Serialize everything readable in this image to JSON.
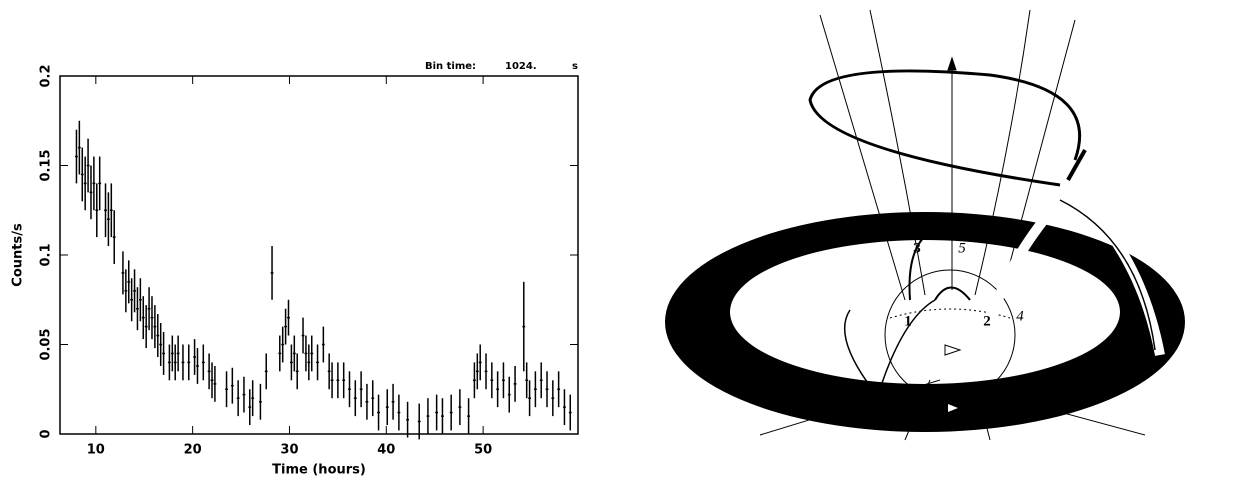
{
  "chart_data": {
    "type": "errorbar",
    "xlabel": "Time (hours)",
    "ylabel": "Counts/s",
    "annotations": [
      "Bin time:",
      "1024.",
      "s"
    ],
    "xlim": [
      6.3,
      59.8
    ],
    "ylim": [
      0,
      0.2
    ],
    "xticks": [
      10,
      20,
      30,
      40,
      50
    ],
    "yticks": [
      0,
      0.05,
      0.1,
      0.15,
      0.2
    ],
    "color": "#000000",
    "x": [
      8.0,
      8.3,
      8.6,
      8.9,
      9.2,
      9.5,
      9.8,
      10.1,
      10.4,
      11.0,
      11.3,
      11.6,
      11.9,
      12.8,
      13.1,
      13.4,
      13.7,
      14.0,
      14.3,
      14.6,
      14.9,
      15.2,
      15.5,
      15.8,
      16.1,
      16.4,
      16.7,
      17.0,
      17.6,
      17.9,
      18.2,
      18.5,
      19.0,
      19.6,
      20.2,
      20.5,
      21.1,
      21.7,
      22.0,
      22.3,
      23.5,
      24.1,
      24.7,
      25.3,
      25.9,
      26.2,
      27.0,
      27.6,
      28.2,
      29.0,
      29.3,
      29.6,
      29.9,
      30.2,
      30.5,
      30.8,
      31.4,
      31.7,
      32.0,
      32.3,
      32.9,
      33.5,
      34.1,
      34.4,
      35.0,
      35.6,
      36.2,
      36.8,
      37.4,
      38.0,
      38.6,
      39.2,
      40.1,
      40.7,
      41.3,
      42.2,
      43.4,
      44.3,
      45.2,
      45.8,
      46.7,
      47.6,
      48.5,
      49.1,
      49.4,
      49.7,
      50.3,
      50.9,
      51.5,
      52.1,
      52.7,
      53.3,
      54.2,
      54.5,
      54.8,
      55.4,
      56.0,
      56.6,
      57.2,
      57.8,
      58.4,
      59.0
    ],
    "values": [
      0.155,
      0.16,
      0.145,
      0.14,
      0.15,
      0.135,
      0.14,
      0.125,
      0.14,
      0.125,
      0.12,
      0.125,
      0.11,
      0.09,
      0.08,
      0.085,
      0.075,
      0.08,
      0.07,
      0.075,
      0.065,
      0.06,
      0.07,
      0.065,
      0.06,
      0.055,
      0.05,
      0.045,
      0.04,
      0.045,
      0.04,
      0.045,
      0.04,
      0.04,
      0.043,
      0.038,
      0.04,
      0.035,
      0.03,
      0.028,
      0.025,
      0.027,
      0.02,
      0.022,
      0.015,
      0.02,
      0.018,
      0.035,
      0.09,
      0.045,
      0.05,
      0.06,
      0.065,
      0.04,
      0.045,
      0.035,
      0.055,
      0.045,
      0.04,
      0.045,
      0.04,
      0.05,
      0.035,
      0.03,
      0.03,
      0.03,
      0.025,
      0.02,
      0.025,
      0.018,
      0.02,
      0.012,
      0.015,
      0.018,
      0.012,
      0.008,
      0.007,
      0.01,
      0.012,
      0.01,
      0.012,
      0.015,
      0.01,
      0.03,
      0.035,
      0.04,
      0.035,
      0.03,
      0.025,
      0.03,
      0.022,
      0.028,
      0.06,
      0.03,
      0.02,
      0.025,
      0.03,
      0.025,
      0.02,
      0.025,
      0.015,
      0.012
    ],
    "errors": [
      0.015,
      0.015,
      0.015,
      0.015,
      0.015,
      0.015,
      0.015,
      0.015,
      0.015,
      0.015,
      0.015,
      0.015,
      0.015,
      0.012,
      0.012,
      0.012,
      0.012,
      0.012,
      0.012,
      0.012,
      0.012,
      0.012,
      0.012,
      0.012,
      0.012,
      0.012,
      0.012,
      0.012,
      0.01,
      0.01,
      0.01,
      0.01,
      0.01,
      0.01,
      0.01,
      0.01,
      0.01,
      0.01,
      0.01,
      0.01,
      0.01,
      0.01,
      0.01,
      0.01,
      0.01,
      0.01,
      0.01,
      0.01,
      0.015,
      0.01,
      0.01,
      0.01,
      0.01,
      0.01,
      0.01,
      0.01,
      0.01,
      0.01,
      0.01,
      0.01,
      0.01,
      0.01,
      0.01,
      0.01,
      0.01,
      0.01,
      0.01,
      0.01,
      0.01,
      0.01,
      0.01,
      0.01,
      0.01,
      0.01,
      0.01,
      0.01,
      0.01,
      0.01,
      0.01,
      0.01,
      0.01,
      0.01,
      0.01,
      0.01,
      0.01,
      0.01,
      0.01,
      0.01,
      0.01,
      0.01,
      0.01,
      0.01,
      0.025,
      0.01,
      0.01,
      0.01,
      0.01,
      0.01,
      0.01,
      0.01,
      0.01,
      0.01
    ]
  },
  "diagram": {
    "labels": [
      "1",
      "2",
      "3",
      "4",
      "5"
    ]
  }
}
